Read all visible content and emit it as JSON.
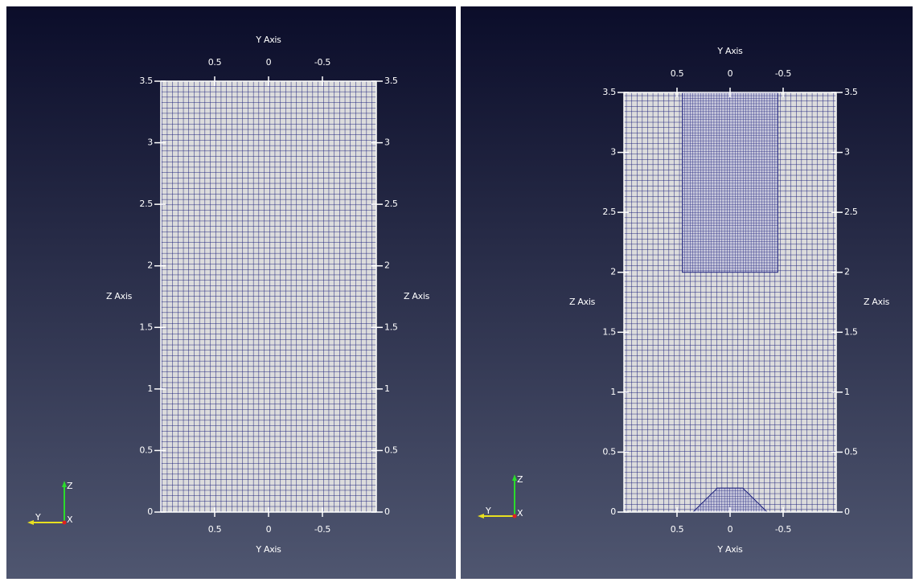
{
  "panels": [
    {
      "y_axis_title": "Y Axis",
      "z_axis_title": "Z Axis",
      "ylim": [
        1,
        -1
      ],
      "yticks": [
        0.5,
        0,
        -0.5
      ],
      "zlim": [
        0,
        3.5
      ],
      "zticks": [
        0,
        0.5,
        1,
        1.5,
        2,
        2.5,
        3,
        3.5
      ],
      "triad": {
        "z": "Z",
        "y": "Y",
        "x": "X"
      }
    },
    {
      "y_axis_title": "Y Axis",
      "z_axis_title": "Z Axis",
      "ylim": [
        1,
        -1
      ],
      "yticks": [
        0.5,
        0,
        -0.5
      ],
      "zlim": [
        0,
        3.5
      ],
      "zticks": [
        0,
        0.5,
        1,
        1.5,
        2,
        2.5,
        3,
        3.5
      ],
      "triad": {
        "z": "Z",
        "y": "Y",
        "x": "X"
      }
    }
  ]
}
